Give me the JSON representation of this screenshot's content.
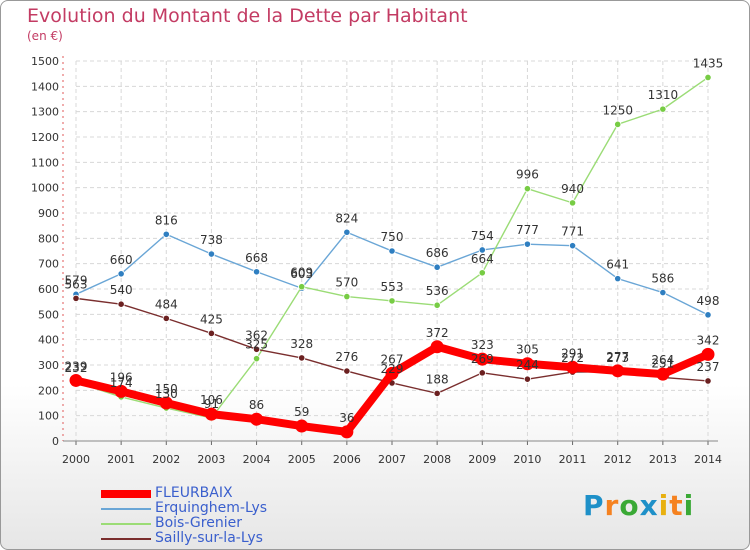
{
  "colors": {
    "title": "#c33b63",
    "legend_text": "#3a5fcd"
  },
  "logo": {
    "letters": [
      {
        "ch": "P",
        "color": "#1e90c8"
      },
      {
        "ch": "r",
        "color": "#f58220"
      },
      {
        "ch": "o",
        "color": "#3aa935"
      },
      {
        "ch": "x",
        "color": "#1e90c8"
      },
      {
        "ch": "i",
        "color": "#e8b00f"
      },
      {
        "ch": "t",
        "color": "#f58220"
      },
      {
        "ch": "i",
        "color": "#3aa935"
      }
    ]
  },
  "chart_data": {
    "type": "line",
    "title": "Evolution du Montant de la Dette par Habitant",
    "subtitle": "(en €)",
    "x": [
      "2000",
      "2001",
      "2002",
      "2003",
      "2004",
      "2005",
      "2006",
      "2007",
      "2008",
      "2009",
      "2010",
      "2011",
      "2012",
      "2013",
      "2014"
    ],
    "ylim": [
      0,
      1500
    ],
    "yticks": [
      0,
      100,
      200,
      300,
      400,
      500,
      600,
      700,
      800,
      900,
      1000,
      1100,
      1200,
      1300,
      1400,
      1500
    ],
    "grid": true,
    "legend_position": "bottom-left",
    "series": [
      {
        "name": "FLEURBAIX",
        "color": "#ff0000",
        "point_color": "#ff0000",
        "values": [
          239,
          196,
          150,
          106,
          86,
          59,
          36,
          267,
          372,
          323,
          305,
          291,
          277,
          264,
          342
        ]
      },
      {
        "name": "Erquinghem-Lys",
        "color": "#6aa6d6",
        "point_color": "#2f7fc1",
        "values": [
          579,
          660,
          816,
          738,
          668,
          603,
          824,
          750,
          686,
          754,
          777,
          771,
          641,
          586,
          498
        ]
      },
      {
        "name": "Bois-Grenier",
        "color": "#9bdc76",
        "point_color": "#77cc44",
        "values": [
          232,
          174,
          130,
          91,
          325,
          609,
          570,
          553,
          536,
          664,
          996,
          940,
          1250,
          1310,
          1435
        ]
      },
      {
        "name": "Sailly-sur-la-Lys",
        "color": "#7a2e2e",
        "point_color": "#6b2020",
        "values": [
          563,
          540,
          484,
          425,
          362,
          328,
          276,
          229,
          188,
          269,
          244,
          272,
          273,
          251,
          237
        ]
      }
    ]
  }
}
